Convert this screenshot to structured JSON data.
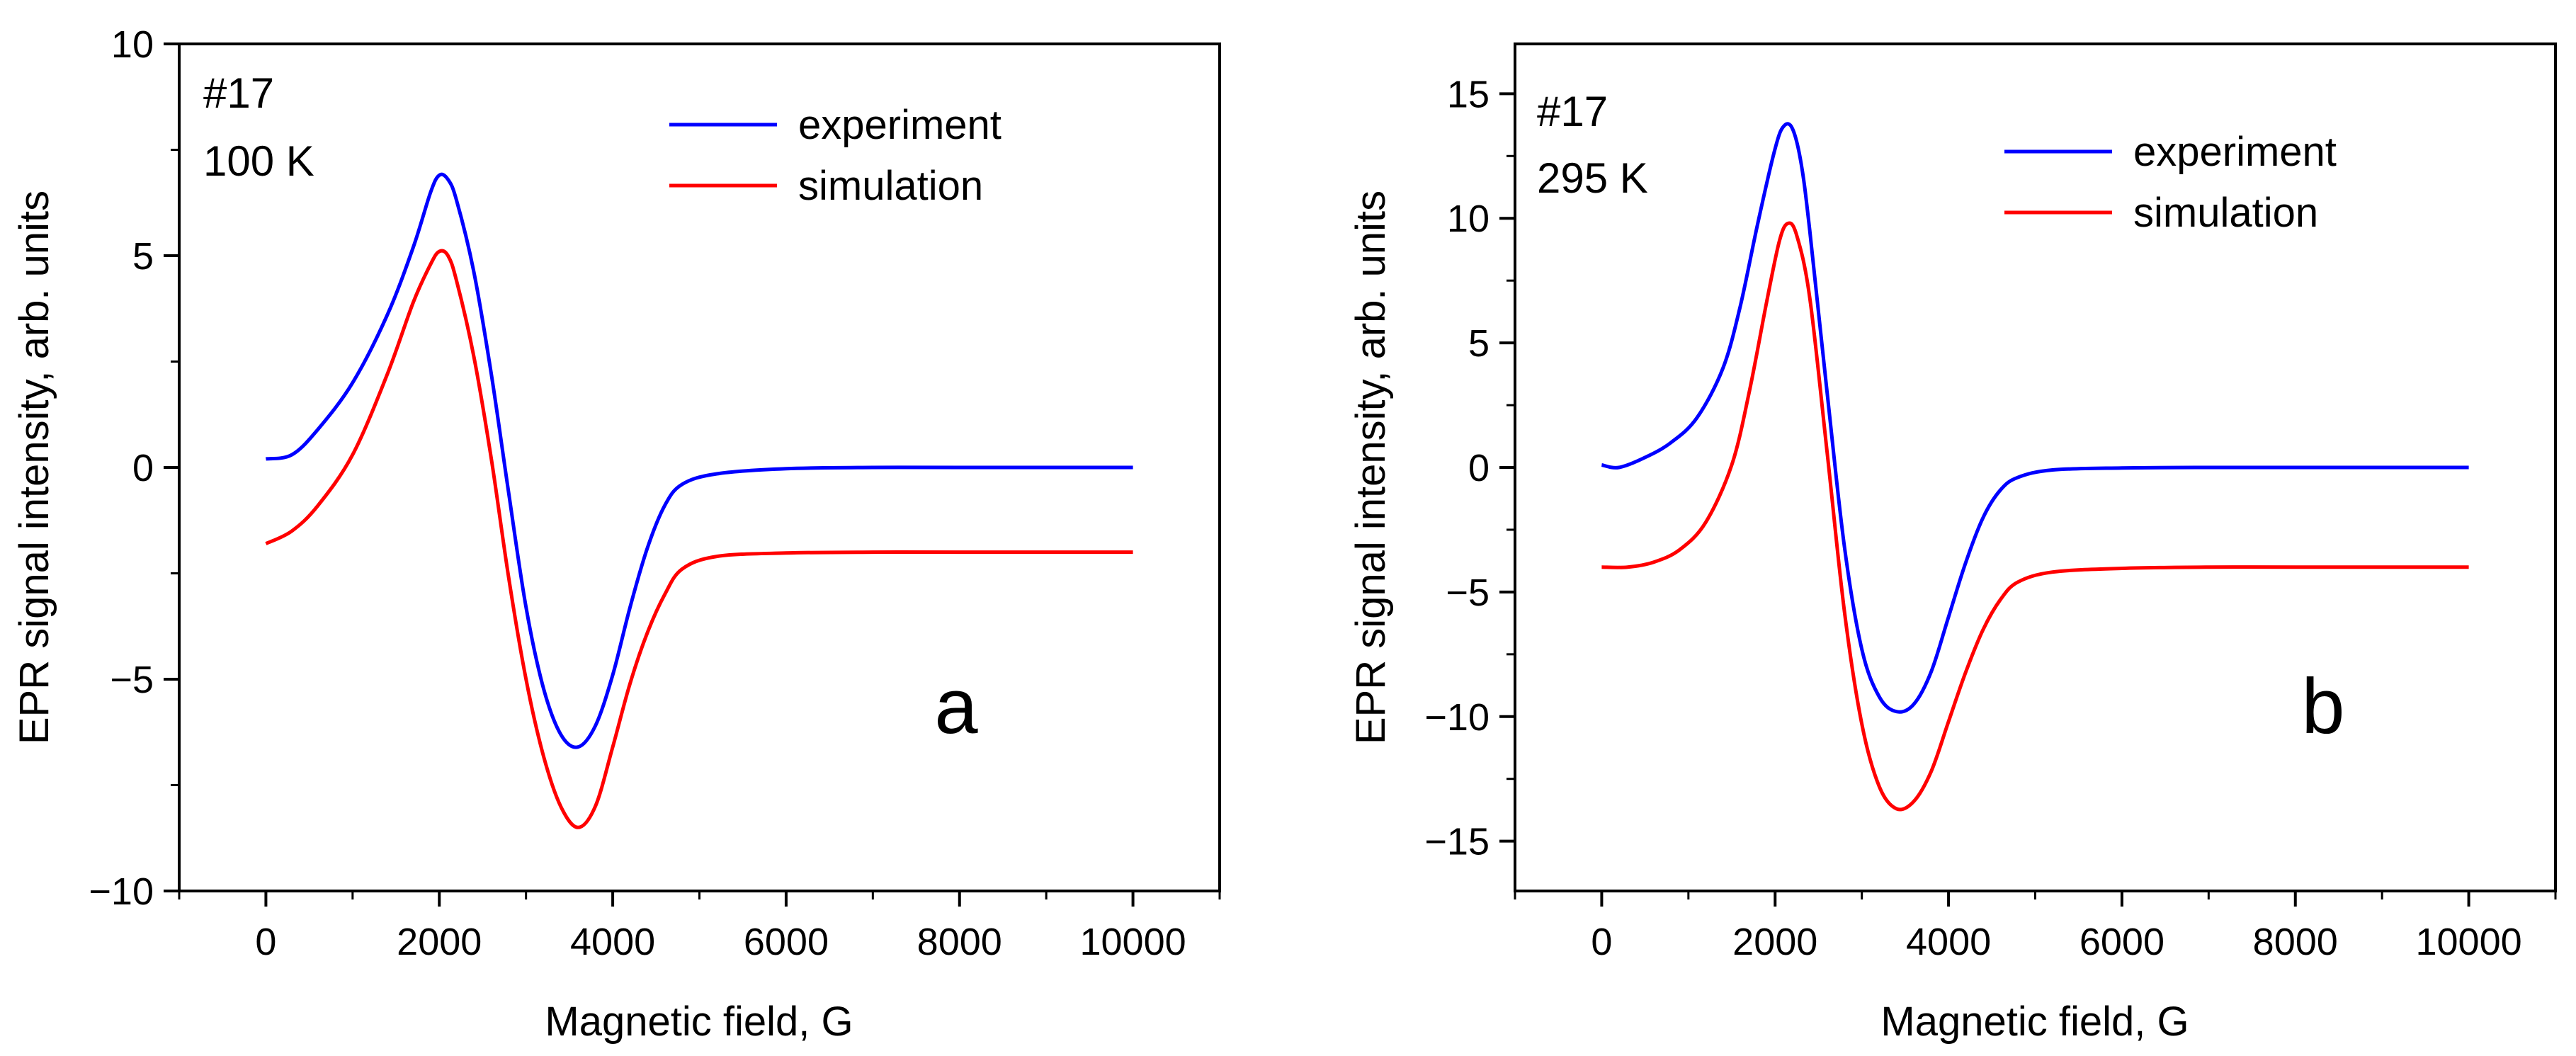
{
  "chart_data": [
    {
      "type": "line",
      "panel_label": "a",
      "annotation": [
        "#17",
        "100 K"
      ],
      "xlabel": "Magnetic field, G",
      "ylabel": "EPR signal intensity, arb. units",
      "xlim": [
        -1000,
        11000
      ],
      "ylim": [
        -10,
        10
      ],
      "xticks": [
        0,
        2000,
        4000,
        6000,
        8000,
        10000
      ],
      "yticks": [
        -10,
        -5,
        0,
        5,
        10
      ],
      "yticklabels": [
        "−10",
        "−5",
        "0",
        "5",
        "10"
      ],
      "legend_position": "top-right",
      "series": [
        {
          "name": "experiment",
          "color": "#0000ff",
          "points": [
            [
              0,
              0.2
            ],
            [
              300,
              0.3
            ],
            [
              600,
              0.9
            ],
            [
              1000,
              2.0
            ],
            [
              1400,
              3.6
            ],
            [
              1700,
              5.2
            ],
            [
              1900,
              6.5
            ],
            [
              2000,
              6.9
            ],
            [
              2100,
              6.8
            ],
            [
              2200,
              6.3
            ],
            [
              2400,
              4.6
            ],
            [
              2600,
              2.2
            ],
            [
              2800,
              -0.6
            ],
            [
              3000,
              -3.3
            ],
            [
              3200,
              -5.2
            ],
            [
              3400,
              -6.3
            ],
            [
              3600,
              -6.6
            ],
            [
              3800,
              -6.1
            ],
            [
              4000,
              -4.9
            ],
            [
              4200,
              -3.3
            ],
            [
              4400,
              -1.9
            ],
            [
              4600,
              -0.9
            ],
            [
              4800,
              -0.4
            ],
            [
              5200,
              -0.15
            ],
            [
              6000,
              -0.03
            ],
            [
              7000,
              0
            ],
            [
              8000,
              0
            ],
            [
              10000,
              0
            ]
          ]
        },
        {
          "name": "simulation",
          "color": "#ff0000",
          "points": [
            [
              0,
              -1.8
            ],
            [
              300,
              -1.5
            ],
            [
              600,
              -0.9
            ],
            [
              1000,
              0.3
            ],
            [
              1400,
              2.2
            ],
            [
              1700,
              3.9
            ],
            [
              1900,
              4.8
            ],
            [
              2000,
              5.1
            ],
            [
              2100,
              5.0
            ],
            [
              2200,
              4.4
            ],
            [
              2400,
              2.6
            ],
            [
              2600,
              0.2
            ],
            [
              2800,
              -2.6
            ],
            [
              3000,
              -5.0
            ],
            [
              3200,
              -6.8
            ],
            [
              3400,
              -8.0
            ],
            [
              3600,
              -8.5
            ],
            [
              3800,
              -8.0
            ],
            [
              4000,
              -6.6
            ],
            [
              4200,
              -5.1
            ],
            [
              4400,
              -3.9
            ],
            [
              4600,
              -3.0
            ],
            [
              4800,
              -2.4
            ],
            [
              5200,
              -2.1
            ],
            [
              6000,
              -2.02
            ],
            [
              7000,
              -2.0
            ],
            [
              8000,
              -2.0
            ],
            [
              10000,
              -2.0
            ]
          ]
        }
      ]
    },
    {
      "type": "line",
      "panel_label": "b",
      "annotation": [
        "#17",
        "295 K"
      ],
      "xlabel": "Magnetic field, G",
      "ylabel": "EPR signal intensity, arb. units",
      "xlim": [
        -1000,
        11000
      ],
      "ylim": [
        -17,
        17
      ],
      "xticks": [
        0,
        2000,
        4000,
        6000,
        8000,
        10000
      ],
      "yticks": [
        -15,
        -10,
        -5,
        0,
        5,
        10,
        15
      ],
      "yticklabels": [
        "−15",
        "−10",
        "−5",
        "0",
        "5",
        "10",
        "15"
      ],
      "legend_position": "top-right",
      "series": [
        {
          "name": "experiment",
          "color": "#0000ff",
          "points": [
            [
              0,
              0.1
            ],
            [
              200,
              0
            ],
            [
              500,
              0.4
            ],
            [
              800,
              1.0
            ],
            [
              1100,
              2.0
            ],
            [
              1400,
              4.0
            ],
            [
              1600,
              6.5
            ],
            [
              1800,
              9.8
            ],
            [
              2000,
              12.8
            ],
            [
              2100,
              13.7
            ],
            [
              2200,
              13.6
            ],
            [
              2300,
              12.2
            ],
            [
              2400,
              9.5
            ],
            [
              2600,
              3.0
            ],
            [
              2800,
              -3.2
            ],
            [
              3000,
              -7.3
            ],
            [
              3200,
              -9.2
            ],
            [
              3400,
              -9.8
            ],
            [
              3600,
              -9.5
            ],
            [
              3800,
              -8.2
            ],
            [
              4000,
              -6.0
            ],
            [
              4200,
              -3.8
            ],
            [
              4400,
              -2.0
            ],
            [
              4600,
              -0.9
            ],
            [
              4800,
              -0.4
            ],
            [
              5200,
              -0.1
            ],
            [
              6000,
              -0.02
            ],
            [
              7000,
              0
            ],
            [
              8000,
              0
            ],
            [
              10000,
              0
            ]
          ]
        },
        {
          "name": "simulation",
          "color": "#ff0000",
          "points": [
            [
              0,
              -4.0
            ],
            [
              300,
              -4.0
            ],
            [
              600,
              -3.8
            ],
            [
              900,
              -3.3
            ],
            [
              1200,
              -2.2
            ],
            [
              1500,
              0.1
            ],
            [
              1700,
              3.0
            ],
            [
              1900,
              6.6
            ],
            [
              2050,
              9.1
            ],
            [
              2150,
              9.8
            ],
            [
              2250,
              9.3
            ],
            [
              2400,
              6.8
            ],
            [
              2600,
              0.6
            ],
            [
              2800,
              -5.8
            ],
            [
              3000,
              -10.3
            ],
            [
              3200,
              -12.8
            ],
            [
              3400,
              -13.7
            ],
            [
              3600,
              -13.4
            ],
            [
              3800,
              -12.2
            ],
            [
              4000,
              -10.2
            ],
            [
              4200,
              -8.2
            ],
            [
              4400,
              -6.5
            ],
            [
              4600,
              -5.3
            ],
            [
              4800,
              -4.6
            ],
            [
              5200,
              -4.2
            ],
            [
              6000,
              -4.05
            ],
            [
              7000,
              -4.0
            ],
            [
              8000,
              -4.0
            ],
            [
              10000,
              -4.0
            ]
          ]
        }
      ]
    }
  ]
}
